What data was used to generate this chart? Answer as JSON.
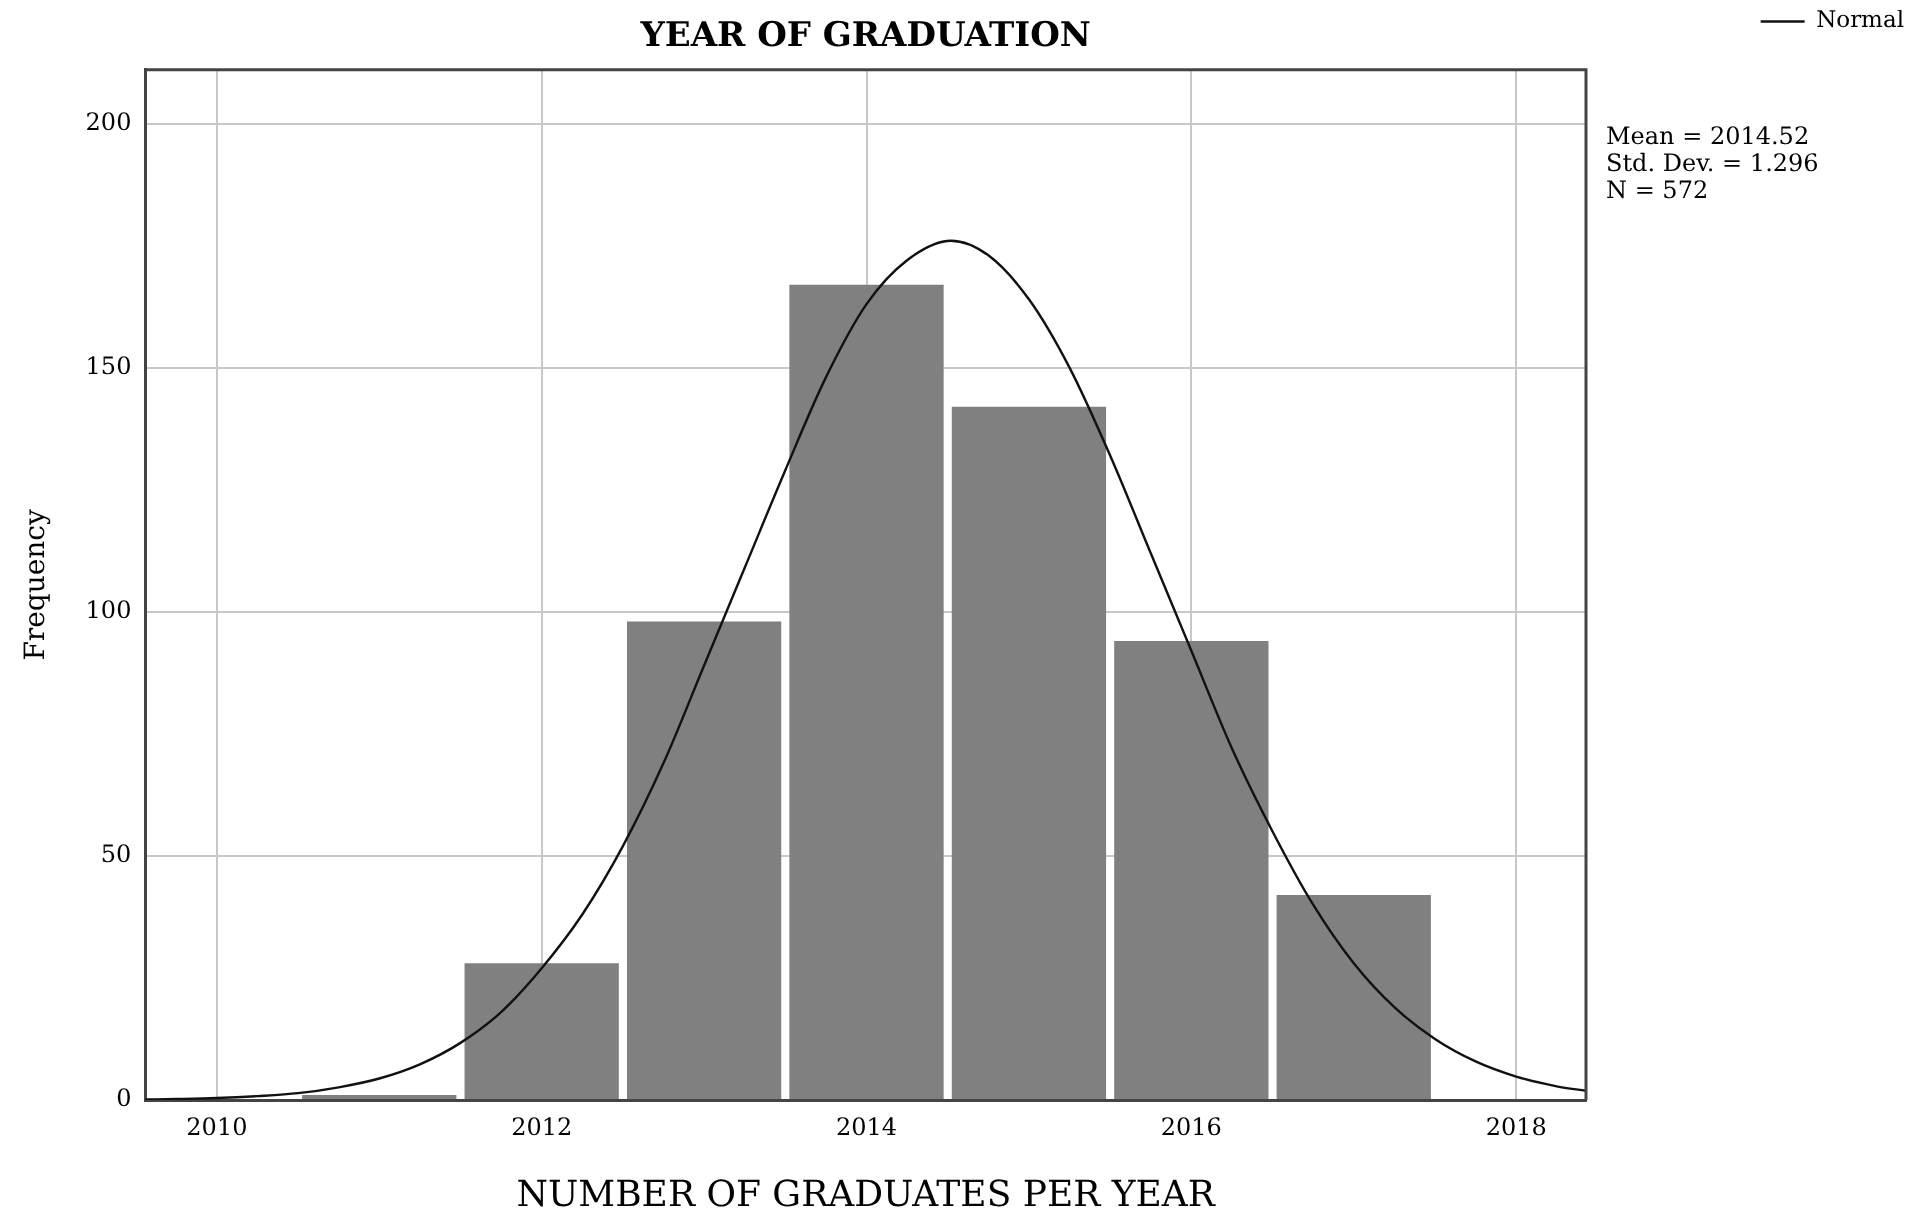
{
  "chart_data": {
    "type": "histogram",
    "title": "YEAR OF GRADUATION",
    "xlabel": "NUMBER OF GRADUATES PER YEAR",
    "ylabel": "Frequency",
    "bins": [
      2010.5,
      2011.5,
      2012.5,
      2013.5,
      2014.5,
      2015.5,
      2016.5,
      2017.5
    ],
    "series": [
      {
        "color": "#808080",
        "values": [
          1,
          28,
          98,
          167,
          142,
          94,
          42
        ]
      },
      {
        "type": "line",
        "name": "Normal",
        "color": "#111111",
        "x": [
          2009.56,
          2009.75,
          2010,
          2010.25,
          2010.5,
          2010.75,
          2011,
          2011.25,
          2011.5,
          2011.75,
          2012,
          2012.25,
          2012.5,
          2012.75,
          2013,
          2013.25,
          2013.5,
          2013.75,
          2014,
          2014.25,
          2014.52,
          2014.75,
          2015,
          2015.25,
          2015.5,
          2015.75,
          2016,
          2016.25,
          2016.5,
          2016.75,
          2017,
          2017.25,
          2017.5,
          2017.75,
          2018,
          2018.25,
          2018.43
        ],
        "values": [
          0.1,
          0.2,
          0.4,
          0.8,
          1.4,
          2.6,
          4.4,
          7.3,
          11.7,
          18,
          27,
          38,
          52,
          69,
          89,
          109,
          129,
          148,
          163,
          172,
          176,
          173,
          164,
          150,
          132,
          112,
          92,
          72,
          55,
          40,
          28,
          19,
          12.5,
          7.9,
          4.8,
          2.8,
          1.9
        ]
      }
    ],
    "xlim": [
      2009.56,
      2018.43
    ],
    "xticks": [
      2010,
      2012,
      2014,
      2016,
      2018
    ],
    "ylim": [
      0,
      211
    ],
    "yticks": [
      0,
      50,
      100,
      150,
      200
    ],
    "grid": true,
    "legend": "top right",
    "annotations": [
      "Mean = 2014.52",
      "Std. Dev. = 1.296",
      "N = 572"
    ]
  }
}
